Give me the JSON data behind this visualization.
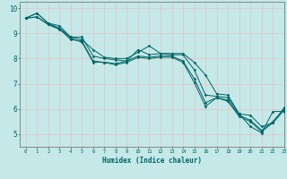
{
  "xlabel": "Humidex (Indice chaleur)",
  "ylabel": "",
  "bg_color": "#c5e8e8",
  "grid_color": "#e0c8c8",
  "line_color": "#006666",
  "spine_color": "#888888",
  "xlim": [
    -0.5,
    23
  ],
  "ylim": [
    4.5,
    10.25
  ],
  "yticks": [
    5,
    6,
    7,
    8,
    9,
    10
  ],
  "xticks": [
    0,
    1,
    2,
    3,
    4,
    5,
    6,
    7,
    8,
    9,
    10,
    11,
    12,
    13,
    14,
    15,
    16,
    17,
    18,
    19,
    20,
    21,
    22,
    23
  ],
  "series": [
    [
      9.6,
      9.8,
      9.4,
      9.3,
      8.85,
      8.75,
      8.35,
      8.05,
      8.0,
      8.0,
      8.25,
      8.5,
      8.2,
      8.2,
      8.2,
      7.85,
      7.35,
      6.6,
      6.55,
      5.8,
      5.3,
      5.05,
      5.9,
      5.9
    ],
    [
      9.6,
      9.8,
      9.4,
      9.2,
      8.85,
      8.85,
      8.1,
      8.0,
      7.95,
      7.9,
      8.35,
      8.15,
      8.2,
      8.15,
      8.15,
      7.55,
      6.55,
      6.5,
      6.45,
      5.8,
      5.75,
      5.3,
      5.45,
      6.05
    ],
    [
      9.6,
      9.65,
      9.35,
      9.2,
      8.75,
      8.7,
      7.9,
      7.85,
      7.8,
      7.9,
      8.1,
      8.05,
      8.1,
      8.1,
      7.9,
      7.2,
      6.25,
      6.45,
      6.35,
      5.75,
      5.55,
      5.15,
      5.5,
      6.0
    ],
    [
      9.6,
      9.65,
      9.35,
      9.15,
      8.8,
      8.65,
      7.85,
      7.85,
      7.75,
      7.85,
      8.05,
      8.0,
      8.05,
      8.05,
      7.85,
      7.05,
      6.1,
      6.45,
      6.3,
      5.7,
      5.5,
      5.1,
      5.45,
      5.95
    ]
  ]
}
